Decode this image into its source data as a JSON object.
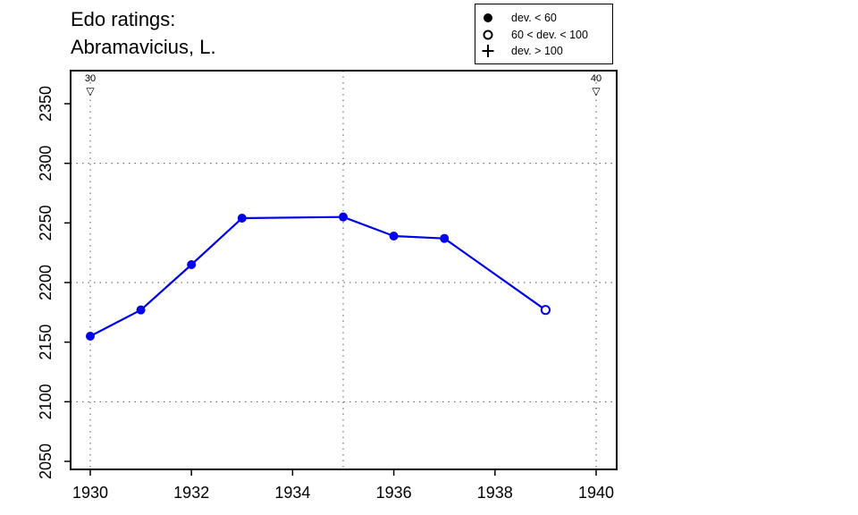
{
  "chart_data": {
    "type": "line",
    "title": [
      "Edo ratings:",
      "Abramavicius, L."
    ],
    "xlim": [
      1930,
      1940
    ],
    "ylim": [
      2050,
      2350
    ],
    "x_ticks": [
      1930,
      1932,
      1934,
      1936,
      1938,
      1940
    ],
    "y_ticks": [
      2050,
      2100,
      2150,
      2200,
      2250,
      2300,
      2350
    ],
    "grid_x": [
      1930,
      1935,
      1940
    ],
    "grid_y": [
      2100,
      2200,
      2300
    ],
    "grid": true,
    "series": [
      {
        "color": "#0000ee",
        "points": [
          {
            "x": 1930,
            "y": 2155,
            "marker": "filled"
          },
          {
            "x": 1931,
            "y": 2177,
            "marker": "filled"
          },
          {
            "x": 1932,
            "y": 2215,
            "marker": "filled"
          },
          {
            "x": 1933,
            "y": 2254,
            "marker": "filled"
          },
          {
            "x": 1935,
            "y": 2255,
            "marker": "filled"
          },
          {
            "x": 1936,
            "y": 2239,
            "marker": "filled"
          },
          {
            "x": 1937,
            "y": 2237,
            "marker": "filled"
          },
          {
            "x": 1939,
            "y": 2177,
            "marker": "open"
          }
        ]
      }
    ],
    "annotations": [
      {
        "x": 1930,
        "label": "30",
        "symbol": "▽"
      },
      {
        "x": 1940,
        "label": "40",
        "symbol": "▽"
      }
    ],
    "legend": {
      "placement": "top-right",
      "entries": [
        {
          "symbol": "filled-circle",
          "label": "dev. < 60"
        },
        {
          "symbol": "open-circle",
          "label": "60 < dev. < 100"
        },
        {
          "symbol": "plus",
          "label": "dev. > 100"
        }
      ]
    }
  }
}
